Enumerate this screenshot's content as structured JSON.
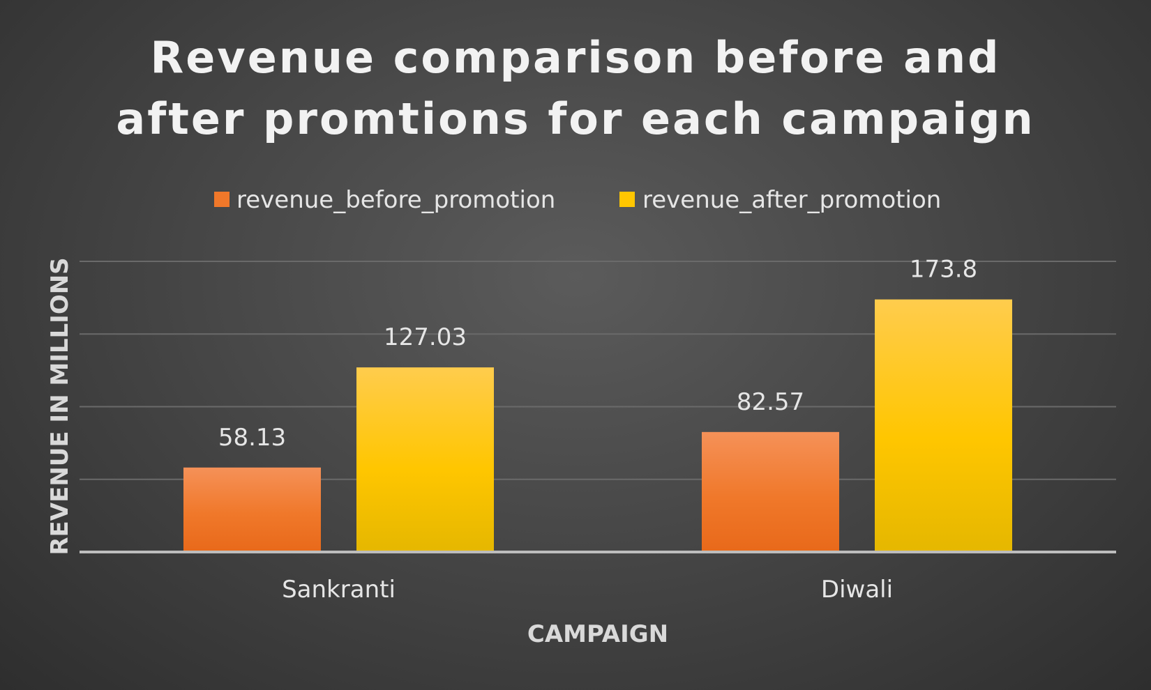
{
  "chart_data": {
    "type": "bar",
    "title_lines": [
      "Revenue comparison before and",
      "after promtions for each campaign"
    ],
    "xlabel": "CAMPAIGN",
    "ylabel": "REVENUE IN MILLIONS",
    "categories": [
      "Sankranti",
      "Diwali"
    ],
    "series": [
      {
        "name": "revenue_before_promotion",
        "values": [
          58.13,
          82.57
        ],
        "labels": [
          "58.13",
          "82.57"
        ],
        "color": "#f0782a",
        "color_light": "#f59158",
        "color_dark": "#e8691a"
      },
      {
        "name": "revenue_after_promotion",
        "values": [
          127.03,
          173.8
        ],
        "labels": [
          "127.03",
          "173.8"
        ],
        "color": "#ffc600",
        "color_light": "#ffcc4d",
        "color_dark": "#e5b700"
      }
    ],
    "ylim": [
      0,
      200
    ],
    "gridlines": [
      50,
      100,
      150,
      200
    ],
    "grid": true,
    "legend_position": "top"
  }
}
